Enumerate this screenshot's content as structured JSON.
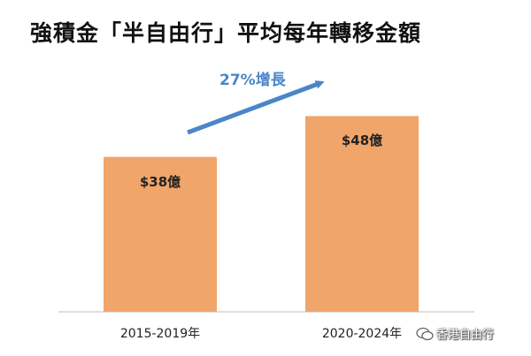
{
  "title": "強積金「半自由行」平均每年轉移金額",
  "growth_annotation": "27%增長",
  "watermark": "香港自由行",
  "colors": {
    "bar": "#F0A56B",
    "arrow": "#4a86c8",
    "axis": "#bfbfbf"
  },
  "chart_data": {
    "type": "bar",
    "title": "強積金「半自由行」平均每年轉移金額",
    "categories": [
      "2015-2019年",
      "2020-2024年"
    ],
    "values": [
      38,
      48
    ],
    "value_labels": [
      "$38億",
      "$48億"
    ],
    "ylim": [
      0,
      60
    ],
    "grid": false,
    "annotations": [
      "27%增長"
    ]
  }
}
